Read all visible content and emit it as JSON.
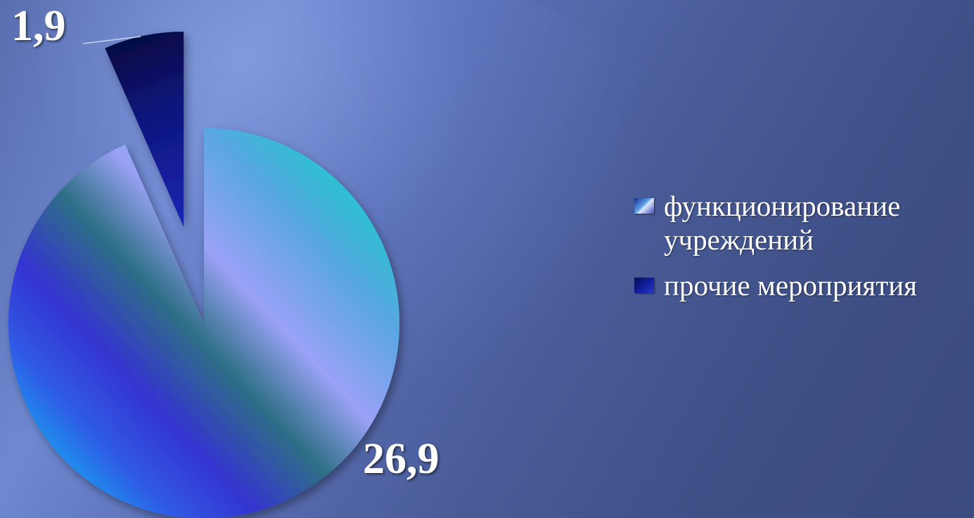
{
  "chart_data": {
    "type": "pie",
    "title": "",
    "labels": [
      "функционирование учреждений",
      "прочие мероприятия"
    ],
    "values": [
      26.9,
      1.9
    ],
    "value_labels": [
      "26,9",
      "1,9"
    ],
    "colors": [
      "#40c8d8",
      "#101a8a"
    ],
    "legend_position": "right"
  },
  "legend": {
    "items": [
      {
        "label": "функционирование учреждений",
        "color": "#5a9ae0"
      },
      {
        "label": "прочие мероприятия",
        "color": "#101a8a"
      }
    ]
  }
}
